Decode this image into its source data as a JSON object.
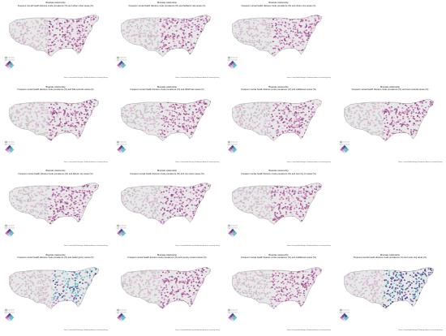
{
  "panels": [
    {
      "title": "Bivariate relationship",
      "subtitle": "Frequent mental health distress crude prevalence (%) and urban urban areas (%)",
      "footnote": "Source: County Health Rankings & Roadmaps; American Community Survey",
      "variant": "pink"
    },
    {
      "title": "Bivariate relationship",
      "subtitle": "Frequent mental health distress crude prevalence (%) and fieldwork rate areas (%)",
      "footnote": "Source: County Health Rankings & Roadmaps; American Community Survey",
      "variant": "pink"
    },
    {
      "title": "Bivariate relationship",
      "subtitle": "Frequent mental health distress crude prevalence (%) and urban core areas (%)",
      "footnote": "Source: County Health Rankings & Roadmaps; American Community Survey",
      "variant": "pink"
    },
    {
      "title": "",
      "subtitle": "",
      "footnote": "",
      "variant": "empty"
    },
    {
      "title": "Bivariate relationship",
      "subtitle": "Frequent mental health distress crude prevalence (%) and little suburbs areas (%)",
      "footnote": "Source: County Health Rankings & Roadmaps; American Community Survey",
      "variant": "pink"
    },
    {
      "title": "Bivariate relationship",
      "subtitle": "Frequent mental health distress crude prevalence (%) and riffraff rate areas (%)",
      "footnote": "Source: County Health Rankings & Roadmaps; American Community Survey",
      "variant": "pink"
    },
    {
      "title": "Bivariate relationship",
      "subtitle": "Frequent mental health distress crude prevalence (%) and middletown areas (%)",
      "footnote": "Source: County Health Rankings & Roadmaps; American Community Survey",
      "variant": "pink"
    },
    {
      "title": "Bivariate relationship",
      "subtitle": "Frequent mental health distress crude prevalence (%) and town suburbs areas (%)",
      "footnote": "Source: County Health Rankings & Roadmaps; American Community Survey",
      "variant": "pink"
    },
    {
      "title": "Bivariate relationship",
      "subtitle": "Frequent mental health distress crude prevalence (%) and laborer city areas (%)",
      "footnote": "Source: County Health Rankings & Roadmaps; American Community Survey",
      "variant": "pink"
    },
    {
      "title": "Bivariate relationship",
      "subtitle": "Frequent mental health distress crude prevalence (%) and city center areas (%)",
      "footnote": "Source: County Health Rankings & Roadmaps; American Community Survey",
      "variant": "pink"
    },
    {
      "title": "Bivariate relationship",
      "subtitle": "Frequent mental health distress crude prevalence (%) and mini city cir areas (%)",
      "footnote": "Source: County Health Rankings & Roadmaps; American Community Survey",
      "variant": "pink"
    },
    {
      "title": "",
      "subtitle": "",
      "footnote": "",
      "variant": "empty"
    },
    {
      "title": "Bivariate relationship",
      "subtitle": "Frequent mental health distress crude prevalence (%) and lawful gentry areas (%)",
      "footnote": "Source: County Health Rankings & Roadmaps; American Community Survey",
      "variant": "teal"
    },
    {
      "title": "Bivariate relationship",
      "subtitle": "Frequent mental health distress crude prevalence (%) and country content areas (%)",
      "footnote": "Source: County Health Rankings & Roadmaps; American Community Survey",
      "variant": "pink"
    },
    {
      "title": "Bivariate relationship",
      "subtitle": "Frequent mental health distress crude prevalence (%) and middletown areas (%)",
      "footnote": "Source: County Health Rankings & Roadmaps; American Community Survey",
      "variant": "pink"
    },
    {
      "title": "Bivariate relationship",
      "subtitle": "Frequent mental health distress crude prevalence (%) and outer ring areas (%)",
      "footnote": "Source: County Health Rankings & Roadmaps; American Community Survey",
      "variant": "navy"
    }
  ],
  "colors": {
    "light": "#e8e8e8",
    "pink_low": "#dfb0d6",
    "pink_high": "#be64ac",
    "purple": "#8c3e7d",
    "teal": "#5ac8c8",
    "navy": "#3b4994",
    "grey": "#bdbdbd"
  }
}
